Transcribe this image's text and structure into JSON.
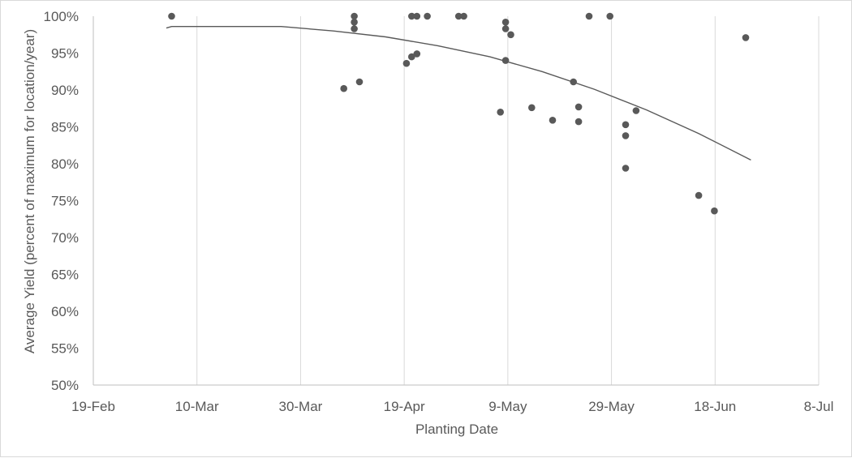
{
  "chart_data": {
    "type": "scatter",
    "title": "",
    "xlabel": "Planting Date",
    "ylabel": "Average Yield (percent of maximum for location/year)",
    "x_ticks": [
      "19-Feb",
      "10-Mar",
      "30-Mar",
      "19-Apr",
      "9-May",
      "29-May",
      "18-Jun",
      "8-Jul"
    ],
    "y_ticks": [
      "50%",
      "55%",
      "60%",
      "65%",
      "70%",
      "75%",
      "80%",
      "85%",
      "90%",
      "95%",
      "100%"
    ],
    "xlim": [
      "2021-02-19",
      "2021-07-08"
    ],
    "ylim": [
      50,
      100
    ],
    "grid": "vertical",
    "marker_color": "#595959",
    "trend_color": "#595959",
    "series": [
      {
        "points": [
          {
            "x": "2021-03-06",
            "y": 100
          },
          {
            "x": "2021-04-08",
            "y": 90.2
          },
          {
            "x": "2021-04-10",
            "y": 100
          },
          {
            "x": "2021-04-10",
            "y": 99.2
          },
          {
            "x": "2021-04-10",
            "y": 98.3
          },
          {
            "x": "2021-04-11",
            "y": 91.1
          },
          {
            "x": "2021-04-20",
            "y": 93.6
          },
          {
            "x": "2021-04-21",
            "y": 100
          },
          {
            "x": "2021-04-21",
            "y": 94.5
          },
          {
            "x": "2021-04-22",
            "y": 100
          },
          {
            "x": "2021-04-22",
            "y": 94.9
          },
          {
            "x": "2021-04-24",
            "y": 100
          },
          {
            "x": "2021-04-30",
            "y": 100
          },
          {
            "x": "2021-05-01",
            "y": 100
          },
          {
            "x": "2021-05-08",
            "y": 87.0
          },
          {
            "x": "2021-05-09",
            "y": 99.2
          },
          {
            "x": "2021-05-09",
            "y": 98.3
          },
          {
            "x": "2021-05-09",
            "y": 94.0
          },
          {
            "x": "2021-05-10",
            "y": 97.5
          },
          {
            "x": "2021-05-14",
            "y": 87.6
          },
          {
            "x": "2021-05-18",
            "y": 85.9
          },
          {
            "x": "2021-05-22",
            "y": 91.1
          },
          {
            "x": "2021-05-23",
            "y": 87.7
          },
          {
            "x": "2021-05-23",
            "y": 85.7
          },
          {
            "x": "2021-05-25",
            "y": 100
          },
          {
            "x": "2021-05-29",
            "y": 100
          },
          {
            "x": "2021-06-01",
            "y": 85.3
          },
          {
            "x": "2021-06-01",
            "y": 83.8
          },
          {
            "x": "2021-06-01",
            "y": 79.4
          },
          {
            "x": "2021-06-03",
            "y": 87.2
          },
          {
            "x": "2021-06-15",
            "y": 75.7
          },
          {
            "x": "2021-06-18",
            "y": 73.6
          },
          {
            "x": "2021-06-24",
            "y": 97.1
          }
        ]
      }
    ],
    "trendline": {
      "type": "quadratic",
      "points": [
        {
          "x": "2021-03-05",
          "y": 98.4
        },
        {
          "x": "2021-03-06",
          "y": 98.6
        },
        {
          "x": "2021-03-27",
          "y": 98.6
        },
        {
          "x": "2021-04-06",
          "y": 98.0
        },
        {
          "x": "2021-04-16",
          "y": 97.2
        },
        {
          "x": "2021-04-26",
          "y": 96.0
        },
        {
          "x": "2021-05-06",
          "y": 94.5
        },
        {
          "x": "2021-05-16",
          "y": 92.5
        },
        {
          "x": "2021-05-26",
          "y": 90.1
        },
        {
          "x": "2021-06-05",
          "y": 87.3
        },
        {
          "x": "2021-06-15",
          "y": 84.1
        },
        {
          "x": "2021-06-25",
          "y": 80.5
        }
      ]
    }
  }
}
